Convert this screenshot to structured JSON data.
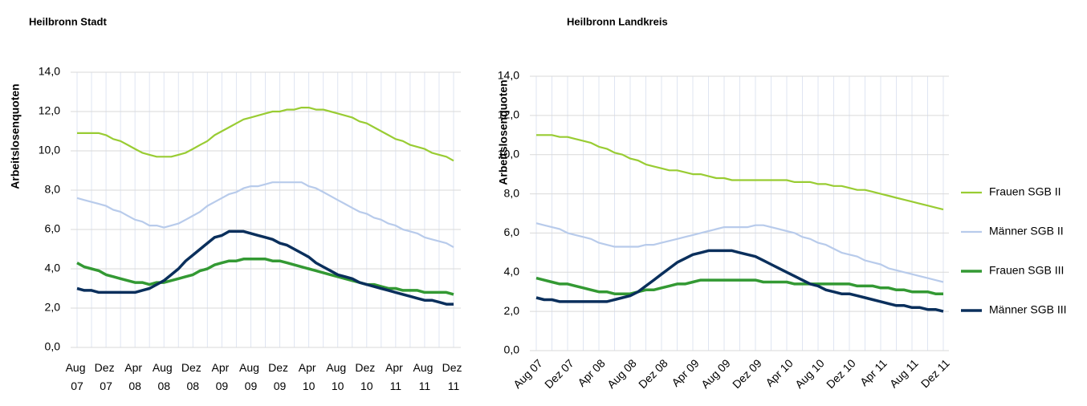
{
  "chart_data": [
    {
      "type": "line",
      "title": "Heilbronn Stadt",
      "y_label": "Arbeitslosenquoten",
      "categories": [
        "Aug 07",
        null,
        null,
        null,
        "Dez 07",
        null,
        null,
        null,
        "Apr 08",
        null,
        null,
        null,
        "Aug 08",
        null,
        null,
        null,
        "Dez 08",
        null,
        null,
        null,
        "Apr 09",
        null,
        null,
        null,
        "Aug 09",
        null,
        null,
        null,
        "Dez 09",
        null,
        null,
        null,
        "Apr 10",
        null,
        null,
        null,
        "Aug 10",
        null,
        null,
        null,
        "Dez 10",
        null,
        null,
        null,
        "Apr 11",
        null,
        null,
        null,
        "Aug 11",
        null,
        null,
        null,
        "Dez 11"
      ],
      "ylim": [
        0,
        14
      ],
      "yticks": [
        {
          "value": 0,
          "label": "0,0"
        },
        {
          "value": 2,
          "label": "2,0"
        },
        {
          "value": 4,
          "label": "4,0"
        },
        {
          "value": 6,
          "label": "6,0"
        },
        {
          "value": 8,
          "label": "8,0"
        },
        {
          "value": 10,
          "label": "10,0"
        },
        {
          "value": 12,
          "label": "12,0"
        },
        {
          "value": 14,
          "label": "14,0"
        }
      ],
      "grid": true,
      "series": [
        {
          "name": "Frauen SGB II",
          "color": "#99cc33",
          "values": [
            10.9,
            10.9,
            10.9,
            10.9,
            10.8,
            10.6,
            10.5,
            10.3,
            10.1,
            9.9,
            9.8,
            9.7,
            9.7,
            9.7,
            9.8,
            9.9,
            10.1,
            10.3,
            10.5,
            10.8,
            11.0,
            11.2,
            11.4,
            11.6,
            11.7,
            11.8,
            11.9,
            12.0,
            12.0,
            12.1,
            12.1,
            12.2,
            12.2,
            12.1,
            12.1,
            12.0,
            11.9,
            11.8,
            11.7,
            11.5,
            11.4,
            11.2,
            11.0,
            10.8,
            10.6,
            10.5,
            10.3,
            10.2,
            10.1,
            9.9,
            9.8,
            9.7,
            9.5
          ]
        },
        {
          "name": "Männer SGB II",
          "color": "#b8cbeb",
          "values": [
            7.6,
            7.5,
            7.4,
            7.3,
            7.2,
            7.0,
            6.9,
            6.7,
            6.5,
            6.4,
            6.2,
            6.2,
            6.1,
            6.2,
            6.3,
            6.5,
            6.7,
            6.9,
            7.2,
            7.4,
            7.6,
            7.8,
            7.9,
            8.1,
            8.2,
            8.2,
            8.3,
            8.4,
            8.4,
            8.4,
            8.4,
            8.4,
            8.2,
            8.1,
            7.9,
            7.7,
            7.5,
            7.3,
            7.1,
            6.9,
            6.8,
            6.6,
            6.5,
            6.3,
            6.2,
            6.0,
            5.9,
            5.8,
            5.6,
            5.5,
            5.4,
            5.3,
            5.1
          ]
        },
        {
          "name": "Frauen SGB III",
          "color": "#339933",
          "values": [
            4.3,
            4.1,
            4.0,
            3.9,
            3.7,
            3.6,
            3.5,
            3.4,
            3.3,
            3.3,
            3.2,
            3.3,
            3.3,
            3.4,
            3.5,
            3.6,
            3.7,
            3.9,
            4.0,
            4.2,
            4.3,
            4.4,
            4.4,
            4.5,
            4.5,
            4.5,
            4.5,
            4.4,
            4.4,
            4.3,
            4.2,
            4.1,
            4.0,
            3.9,
            3.8,
            3.7,
            3.6,
            3.5,
            3.4,
            3.3,
            3.2,
            3.2,
            3.1,
            3.0,
            3.0,
            2.9,
            2.9,
            2.9,
            2.8,
            2.8,
            2.8,
            2.8,
            2.7
          ]
        },
        {
          "name": "Männer SGB III",
          "color": "#0a2f5c",
          "values": [
            3.0,
            2.9,
            2.9,
            2.8,
            2.8,
            2.8,
            2.8,
            2.8,
            2.8,
            2.9,
            3.0,
            3.2,
            3.4,
            3.7,
            4.0,
            4.4,
            4.7,
            5.0,
            5.3,
            5.6,
            5.7,
            5.9,
            5.9,
            5.9,
            5.8,
            5.7,
            5.6,
            5.5,
            5.3,
            5.2,
            5.0,
            4.8,
            4.6,
            4.3,
            4.1,
            3.9,
            3.7,
            3.6,
            3.5,
            3.3,
            3.2,
            3.1,
            3.0,
            2.9,
            2.8,
            2.7,
            2.6,
            2.5,
            2.4,
            2.4,
            2.3,
            2.2,
            2.2
          ]
        }
      ]
    },
    {
      "type": "line",
      "title": "Heilbronn Landkreis",
      "y_label": "Arbeitslosenquoten",
      "categories": [
        "Aug 07",
        null,
        null,
        null,
        "Dez 07",
        null,
        null,
        null,
        "Apr 08",
        null,
        null,
        null,
        "Aug 08",
        null,
        null,
        null,
        "Dez 08",
        null,
        null,
        null,
        "Apr 09",
        null,
        null,
        null,
        "Aug 09",
        null,
        null,
        null,
        "Dez 09",
        null,
        null,
        null,
        "Apr 10",
        null,
        null,
        null,
        "Aug 10",
        null,
        null,
        null,
        "Dez 10",
        null,
        null,
        null,
        "Apr 11",
        null,
        null,
        null,
        "Aug 11",
        null,
        null,
        null,
        "Dez 11"
      ],
      "ylim": [
        0,
        14
      ],
      "yticks": [
        {
          "value": 0,
          "label": "0,0"
        },
        {
          "value": 2,
          "label": "2,0"
        },
        {
          "value": 4,
          "label": "4,0"
        },
        {
          "value": 6,
          "label": "6,0"
        },
        {
          "value": 8,
          "label": "8,0"
        },
        {
          "value": 10,
          "label": "10,0"
        },
        {
          "value": 12,
          "label": "12,0"
        },
        {
          "value": 14,
          "label": "14,0"
        }
      ],
      "grid": true,
      "legend": "right",
      "series": [
        {
          "name": "Frauen SGB II",
          "color": "#99cc33",
          "values": [
            11.0,
            11.0,
            11.0,
            10.9,
            10.9,
            10.8,
            10.7,
            10.6,
            10.4,
            10.3,
            10.1,
            10.0,
            9.8,
            9.7,
            9.5,
            9.4,
            9.3,
            9.2,
            9.2,
            9.1,
            9.0,
            9.0,
            8.9,
            8.8,
            8.8,
            8.7,
            8.7,
            8.7,
            8.7,
            8.7,
            8.7,
            8.7,
            8.7,
            8.6,
            8.6,
            8.6,
            8.5,
            8.5,
            8.4,
            8.4,
            8.3,
            8.2,
            8.2,
            8.1,
            8.0,
            7.9,
            7.8,
            7.7,
            7.6,
            7.5,
            7.4,
            7.3,
            7.2
          ]
        },
        {
          "name": "Männer SGB II",
          "color": "#b8cbeb",
          "values": [
            6.5,
            6.4,
            6.3,
            6.2,
            6.0,
            5.9,
            5.8,
            5.7,
            5.5,
            5.4,
            5.3,
            5.3,
            5.3,
            5.3,
            5.4,
            5.4,
            5.5,
            5.6,
            5.7,
            5.8,
            5.9,
            6.0,
            6.1,
            6.2,
            6.3,
            6.3,
            6.3,
            6.3,
            6.4,
            6.4,
            6.3,
            6.2,
            6.1,
            6.0,
            5.8,
            5.7,
            5.5,
            5.4,
            5.2,
            5.0,
            4.9,
            4.8,
            4.6,
            4.5,
            4.4,
            4.2,
            4.1,
            4.0,
            3.9,
            3.8,
            3.7,
            3.6,
            3.5
          ]
        },
        {
          "name": "Frauen SGB III",
          "color": "#339933",
          "values": [
            3.7,
            3.6,
            3.5,
            3.4,
            3.4,
            3.3,
            3.2,
            3.1,
            3.0,
            3.0,
            2.9,
            2.9,
            2.9,
            3.0,
            3.1,
            3.1,
            3.2,
            3.3,
            3.4,
            3.4,
            3.5,
            3.6,
            3.6,
            3.6,
            3.6,
            3.6,
            3.6,
            3.6,
            3.6,
            3.5,
            3.5,
            3.5,
            3.5,
            3.4,
            3.4,
            3.4,
            3.4,
            3.4,
            3.4,
            3.4,
            3.4,
            3.3,
            3.3,
            3.3,
            3.2,
            3.2,
            3.1,
            3.1,
            3.0,
            3.0,
            3.0,
            2.9,
            2.9
          ]
        },
        {
          "name": "Männer SGB III",
          "color": "#0a2f5c",
          "values": [
            2.7,
            2.6,
            2.6,
            2.5,
            2.5,
            2.5,
            2.5,
            2.5,
            2.5,
            2.5,
            2.6,
            2.7,
            2.8,
            3.0,
            3.3,
            3.6,
            3.9,
            4.2,
            4.5,
            4.7,
            4.9,
            5.0,
            5.1,
            5.1,
            5.1,
            5.1,
            5.0,
            4.9,
            4.8,
            4.6,
            4.4,
            4.2,
            4.0,
            3.8,
            3.6,
            3.4,
            3.3,
            3.1,
            3.0,
            2.9,
            2.9,
            2.8,
            2.7,
            2.6,
            2.5,
            2.4,
            2.3,
            2.3,
            2.2,
            2.2,
            2.1,
            2.1,
            2.0
          ]
        }
      ]
    }
  ]
}
